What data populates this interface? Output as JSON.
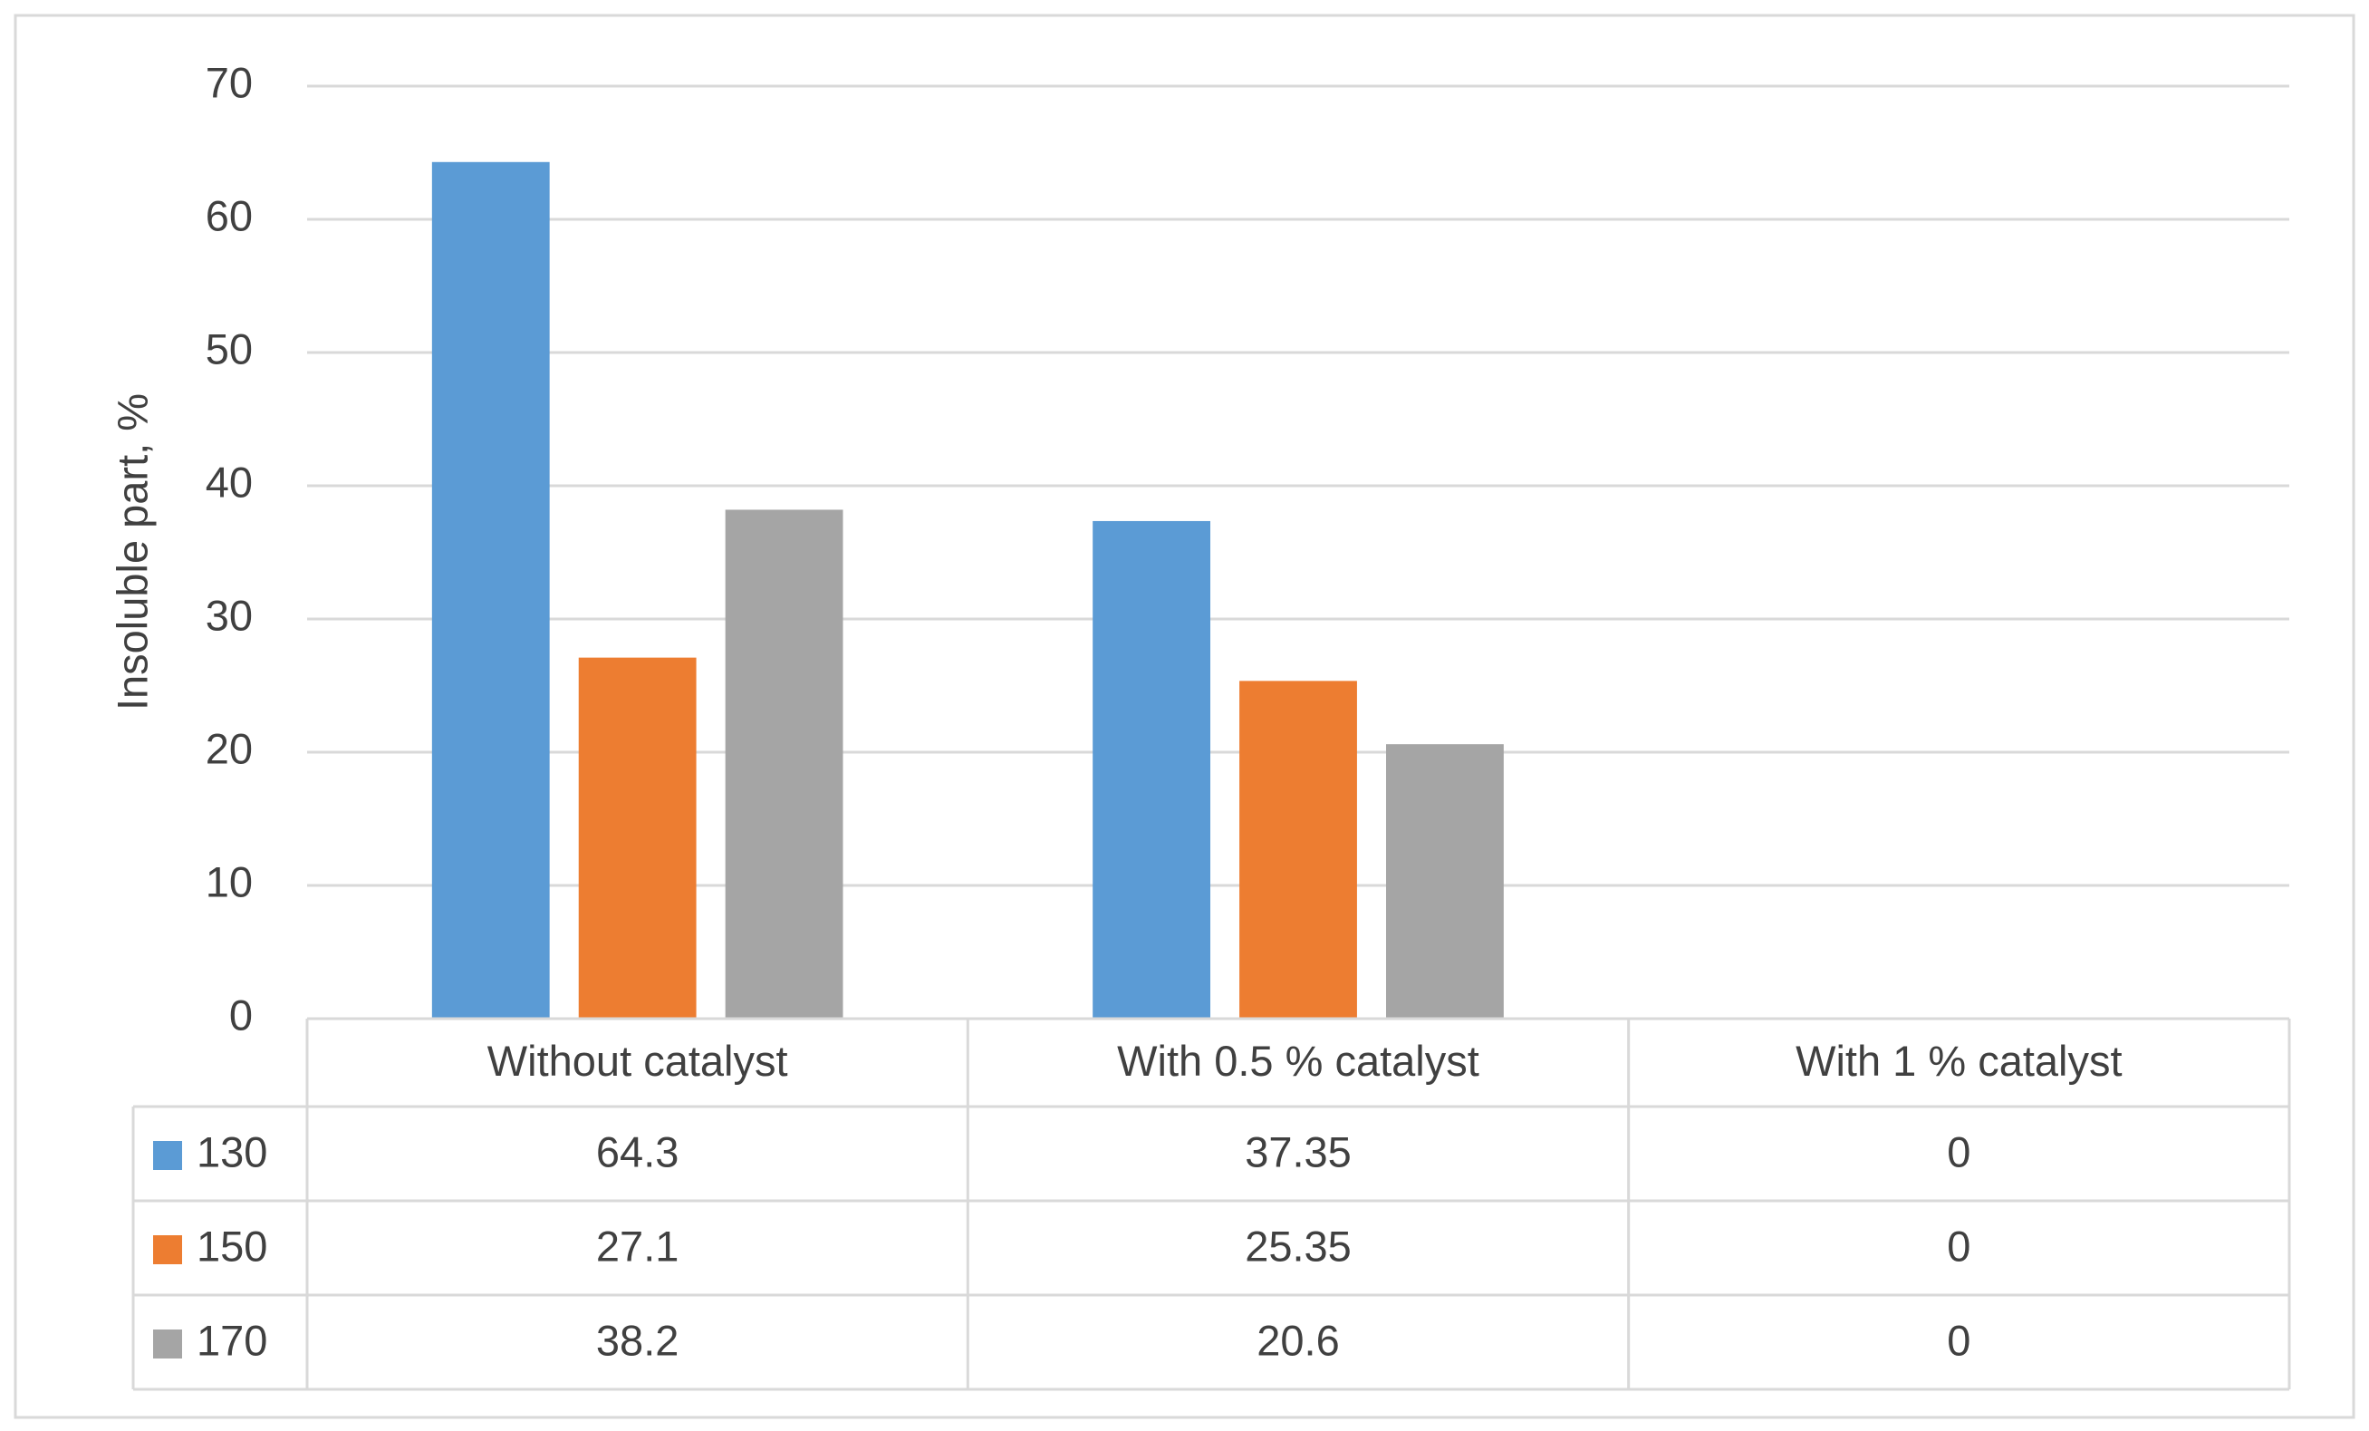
{
  "chart_data": {
    "type": "bar",
    "y_label": "Insoluble part, %",
    "categories": [
      "Without catalyst",
      "With 0.5 % catalyst",
      "With 1 % catalyst"
    ],
    "series": [
      {
        "name": "130",
        "color": "#5b9bd5",
        "values": [
          64.3,
          37.35,
          0
        ]
      },
      {
        "name": "150",
        "color": "#ed7d31",
        "values": [
          27.1,
          25.35,
          0
        ]
      },
      {
        "name": "170",
        "color": "#a5a5a5",
        "values": [
          38.2,
          20.6,
          0
        ]
      }
    ],
    "ylim": [
      0,
      70
    ],
    "yticks": [
      0,
      10,
      20,
      30,
      40,
      50,
      60,
      70
    ],
    "grid": true,
    "data_table": true
  }
}
